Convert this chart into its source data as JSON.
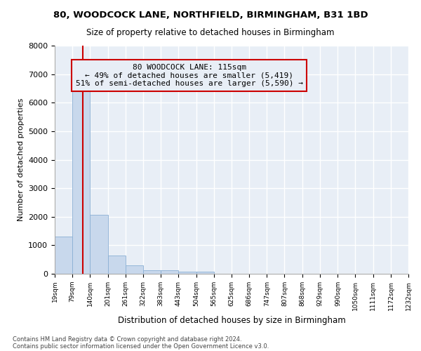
{
  "title1": "80, WOODCOCK LANE, NORTHFIELD, BIRMINGHAM, B31 1BD",
  "title2": "Size of property relative to detached houses in Birmingham",
  "xlabel": "Distribution of detached houses by size in Birmingham",
  "ylabel": "Number of detached properties",
  "footer1": "Contains HM Land Registry data © Crown copyright and database right 2024.",
  "footer2": "Contains public sector information licensed under the Open Government Licence v3.0.",
  "annotation_line1": "80 WOODCOCK LANE: 115sqm",
  "annotation_line2": "← 49% of detached houses are smaller (5,419)",
  "annotation_line3": "51% of semi-detached houses are larger (5,590) →",
  "property_size_sqm": 115,
  "bar_color": "#c8d8ec",
  "bar_edge_color": "#8aafd4",
  "vline_color": "#cc0000",
  "annotation_box_edge_color": "#cc0000",
  "background_color": "#ffffff",
  "plot_bg_color": "#e8eef6",
  "grid_color": "#ffffff",
  "bin_edges": [
    19,
    79,
    140,
    201,
    261,
    322,
    383,
    443,
    504,
    565,
    625,
    686,
    747,
    807,
    868,
    929,
    990,
    1050,
    1111,
    1172,
    1232
  ],
  "bar_heights": [
    1300,
    6600,
    2080,
    650,
    300,
    130,
    130,
    80,
    80,
    0,
    0,
    0,
    0,
    0,
    0,
    0,
    0,
    0,
    0,
    0
  ],
  "ylim": [
    0,
    8000
  ],
  "yticks": [
    0,
    1000,
    2000,
    3000,
    4000,
    5000,
    6000,
    7000,
    8000
  ]
}
